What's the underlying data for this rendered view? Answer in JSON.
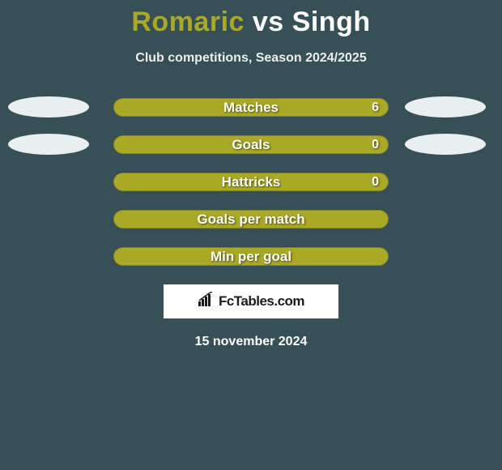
{
  "title": {
    "player1": "Romaric",
    "vs": "vs",
    "player2": "Singh",
    "player1_color": "#a9a927",
    "player2_color": "#ffffff"
  },
  "subtitle": "Club competitions, Season 2024/2025",
  "bar_style": {
    "track_bg": "#4a6268",
    "fill_color": "#a9a927",
    "track_width": 340,
    "track_height": 24,
    "border_radius": 12,
    "label_fontsize": 17,
    "value_fontsize": 16
  },
  "stats": [
    {
      "label": "Matches",
      "value": "6",
      "fill_pct": 100,
      "show_left_ellipse": true,
      "show_right_ellipse": true,
      "show_value": true
    },
    {
      "label": "Goals",
      "value": "0",
      "fill_pct": 100,
      "show_left_ellipse": true,
      "show_right_ellipse": true,
      "show_value": true
    },
    {
      "label": "Hattricks",
      "value": "0",
      "fill_pct": 100,
      "show_left_ellipse": false,
      "show_right_ellipse": false,
      "show_value": true
    },
    {
      "label": "Goals per match",
      "value": "",
      "fill_pct": 100,
      "show_left_ellipse": false,
      "show_right_ellipse": false,
      "show_value": false
    },
    {
      "label": "Min per goal",
      "value": "",
      "fill_pct": 100,
      "show_left_ellipse": false,
      "show_right_ellipse": false,
      "show_value": false
    }
  ],
  "ellipse_style": {
    "width": 100,
    "height": 26,
    "bg": "#e9eeef"
  },
  "brand": {
    "text": "FcTables.com",
    "box_bg": "#ffffff",
    "text_color": "#1b1b1b",
    "icon_color": "#1b1b1b"
  },
  "date_line": "15 november 2024",
  "background_color": "#375055"
}
